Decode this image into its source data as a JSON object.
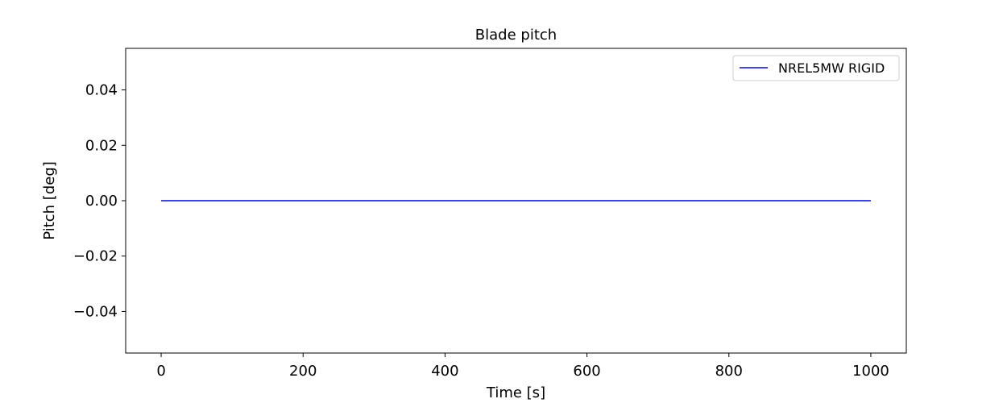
{
  "chart_data": {
    "type": "line",
    "title": "Blade pitch",
    "xlabel": "Time [s]",
    "ylabel": "Pitch [deg]",
    "xlim": [
      -50,
      1050
    ],
    "ylim": [
      -0.055,
      0.055
    ],
    "xticks": [
      0,
      200,
      400,
      600,
      800,
      1000
    ],
    "xtick_labels": [
      "0",
      "200",
      "400",
      "600",
      "800",
      "1000"
    ],
    "yticks": [
      0.04,
      0.02,
      0.0,
      -0.02,
      -0.04
    ],
    "ytick_labels": [
      "0.04",
      "0.02",
      "0.00",
      "−0.02",
      "−0.04"
    ],
    "grid": false,
    "legend_position": "top-right",
    "series": [
      {
        "name": "NREL5MW RIGID",
        "color": "#0000ff",
        "x": [
          0,
          1000
        ],
        "y": [
          0.0,
          0.0
        ]
      }
    ]
  }
}
